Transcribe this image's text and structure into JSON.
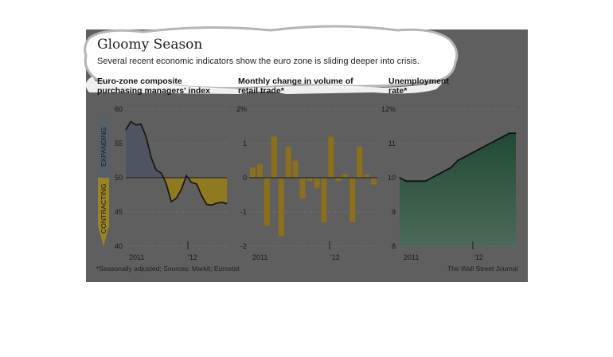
{
  "header": {
    "title": "Gloomy Season",
    "subtitle": "Several recent economic indicators show the euro zone is sliding deeper into crisis."
  },
  "footer": {
    "note": "*Seasonally adjusted; Sources: Markit; Eurostat",
    "credit": "The Wall Street Journal"
  },
  "colors": {
    "panel": "#5f5f5f",
    "expanding": "#4e5560",
    "contracting": "#8f7a1f",
    "bars": "#8a6f1c",
    "unemployment": "#1f4a33"
  },
  "chart_data": [
    {
      "type": "area",
      "title_lines": [
        "Euro-zone composite",
        "purchasing managers' index"
      ],
      "y_ticks": [
        60,
        55,
        50,
        45,
        40
      ],
      "ylim": [
        40,
        60
      ],
      "x_tick_labels": [
        "2011",
        "'12"
      ],
      "band_labels": {
        "above": "EXPANDING",
        "below": "CONTRACTING"
      },
      "baseline": 50,
      "values": [
        57.0,
        58.2,
        57.7,
        57.8,
        56.0,
        53.0,
        51.1,
        50.7,
        49.1,
        46.5,
        47.0,
        48.3,
        50.3,
        49.3,
        49.1,
        47.4,
        46.1,
        46.0,
        46.3,
        46.4,
        46.2
      ]
    },
    {
      "type": "bar",
      "title_lines": [
        "Monthly change in volume of",
        "retail trade*"
      ],
      "y_ticks": [
        "2%",
        "1",
        "0",
        "-1",
        "-2"
      ],
      "ylim": [
        -2,
        2
      ],
      "x_tick_labels": [
        "2011",
        "'12"
      ],
      "values": [
        0.3,
        0.4,
        -1.4,
        1.2,
        -1.7,
        0.9,
        0.5,
        -0.6,
        -0.1,
        -0.3,
        -1.3,
        1.2,
        -0.1,
        0.1,
        -1.3,
        0.9,
        0.1,
        -0.2
      ]
    },
    {
      "type": "area",
      "title_lines": [
        "Unemployment",
        "rate*"
      ],
      "y_ticks": [
        "12%",
        "11",
        "10",
        "9",
        "8"
      ],
      "ylim": [
        8,
        12
      ],
      "x_tick_labels": [
        "2011",
        "'12"
      ],
      "values": [
        10.0,
        9.9,
        9.9,
        9.9,
        9.9,
        10.0,
        10.1,
        10.2,
        10.3,
        10.5,
        10.6,
        10.7,
        10.8,
        10.9,
        11.0,
        11.1,
        11.2,
        11.3,
        11.3
      ]
    }
  ]
}
